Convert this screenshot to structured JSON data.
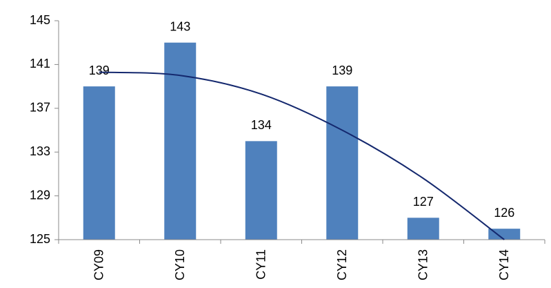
{
  "chart_data": {
    "type": "bar",
    "categories": [
      "CY09",
      "CY10",
      "CY11",
      "CY12",
      "CY13",
      "CY14"
    ],
    "values": [
      139,
      143,
      134,
      139,
      127,
      126
    ],
    "color": "#4f81bd",
    "trend": {
      "color": "#14286e",
      "values": [
        140.3,
        140.0,
        138.3,
        135.0,
        130.6,
        125.0
      ]
    },
    "ylim": [
      125,
      145
    ],
    "yticks": [
      125,
      129,
      133,
      137,
      141,
      145
    ],
    "grid": false
  }
}
